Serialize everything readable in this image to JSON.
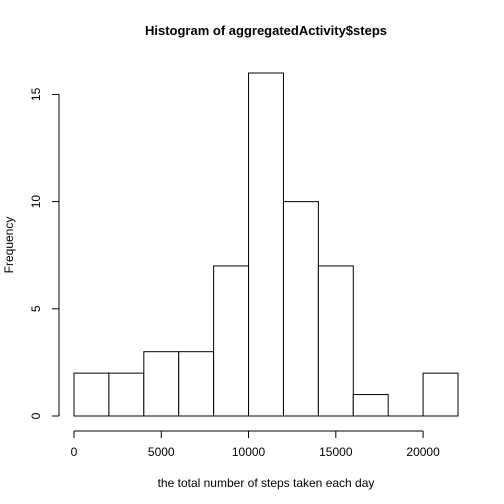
{
  "chart_data": {
    "type": "bar",
    "title": "Histogram of aggregatedActivity$steps",
    "xlabel": "the total number of steps taken each day",
    "ylabel": "Frequency",
    "bins": [
      {
        "from": 0,
        "to": 2000,
        "count": 2
      },
      {
        "from": 2000,
        "to": 4000,
        "count": 2
      },
      {
        "from": 4000,
        "to": 6000,
        "count": 3
      },
      {
        "from": 6000,
        "to": 8000,
        "count": 3
      },
      {
        "from": 8000,
        "to": 10000,
        "count": 7
      },
      {
        "from": 10000,
        "to": 12000,
        "count": 16
      },
      {
        "from": 12000,
        "to": 14000,
        "count": 10
      },
      {
        "from": 14000,
        "to": 16000,
        "count": 7
      },
      {
        "from": 16000,
        "to": 18000,
        "count": 1
      },
      {
        "from": 18000,
        "to": 20000,
        "count": 0
      },
      {
        "from": 20000,
        "to": 22000,
        "count": 2
      }
    ],
    "xlim": [
      0,
      22000
    ],
    "ylim": [
      0,
      16
    ],
    "xticks": [
      0,
      5000,
      10000,
      15000,
      20000
    ],
    "yticks": [
      0,
      5,
      10,
      15
    ],
    "grid": false
  }
}
